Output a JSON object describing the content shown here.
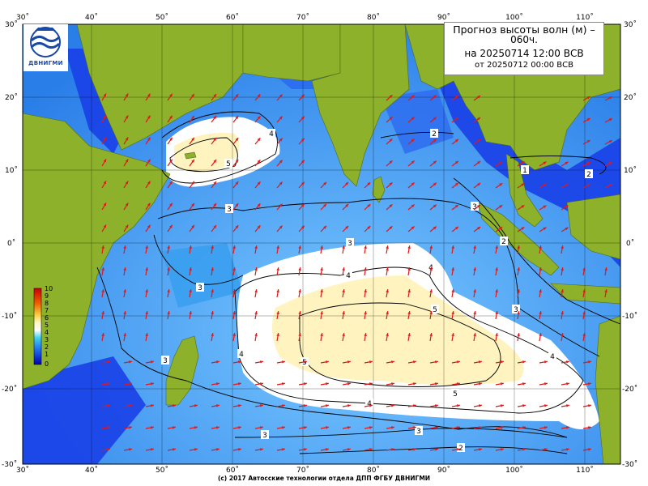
{
  "title": {
    "line1": "Прогноз высоты волн (м) –",
    "line2": "060ч.",
    "line3": "на 20250714 12:00 ВСВ",
    "line4": "от 20250712 00:00 ВСВ"
  },
  "logo": {
    "text": "ДВНИГМИ",
    "icon": "dvnigmi-wave-logo"
  },
  "footer": "(c) 2017 Автосские технологии отдела ДПП ФГБУ ДВНИГМИ",
  "lon_labels": [
    "30˚",
    "40˚",
    "50˚",
    "60˚",
    "70˚",
    "80˚",
    "90˚",
    "100˚",
    "110˚"
  ],
  "lat_labels": [
    "30˚",
    "20˚",
    "10˚",
    "0˚",
    "-10˚",
    "-20˚",
    "-30˚"
  ],
  "colorbar_labels": [
    "10",
    "9",
    "8",
    "7",
    "6",
    "5",
    "4",
    "3",
    "2",
    "1",
    "0"
  ],
  "contour_labels": [
    {
      "value": "4",
      "id": "c4a"
    },
    {
      "value": "5",
      "id": "c5a"
    },
    {
      "value": "3",
      "id": "c3a"
    },
    {
      "value": "2",
      "id": "c2a"
    },
    {
      "value": "1",
      "id": "c1a"
    },
    {
      "value": "2",
      "id": "c2b"
    },
    {
      "value": "3",
      "id": "c3b"
    },
    {
      "value": "2",
      "id": "c2c"
    },
    {
      "value": "3",
      "id": "c3c"
    },
    {
      "value": "3",
      "id": "c3d"
    },
    {
      "value": "4",
      "id": "c4b"
    },
    {
      "value": "5",
      "id": "c5b"
    },
    {
      "value": "5",
      "id": "c5c"
    },
    {
      "value": "4",
      "id": "c4c"
    },
    {
      "value": "4",
      "id": "c4d"
    },
    {
      "value": "4",
      "id": "c4e"
    },
    {
      "value": "5",
      "id": "c5d"
    },
    {
      "value": "4",
      "id": "c4f"
    },
    {
      "value": "3",
      "id": "c3e"
    },
    {
      "value": "3",
      "id": "c3f"
    },
    {
      "value": "3",
      "id": "c3g"
    },
    {
      "value": "3",
      "id": "c3h"
    },
    {
      "value": "2",
      "id": "c2d"
    }
  ],
  "colors": {
    "land": "#8db12a",
    "ocean_low": "#1030e0",
    "ocean_mid": "#3aa8f0",
    "ocean_high": "#fff6c0",
    "arrow": "#e01818",
    "grid": "#000000"
  }
}
